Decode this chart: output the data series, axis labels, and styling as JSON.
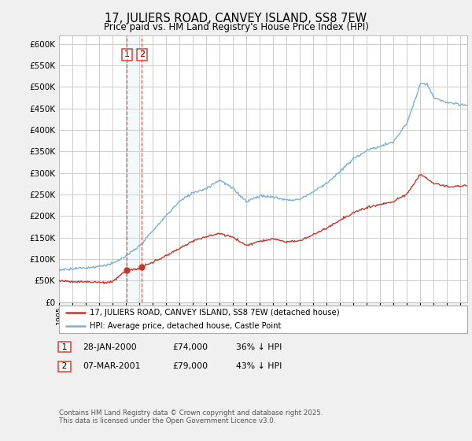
{
  "title": "17, JULIERS ROAD, CANVEY ISLAND, SS8 7EW",
  "subtitle": "Price paid vs. HM Land Registry's House Price Index (HPI)",
  "ytick_vals": [
    0,
    50000,
    100000,
    150000,
    200000,
    250000,
    300000,
    350000,
    400000,
    450000,
    500000,
    550000,
    600000
  ],
  "ylim": [
    0,
    620000
  ],
  "hpi_color": "#7bafd4",
  "price_color": "#c0392b",
  "vline_color": "#e74c3c",
  "shade_color": "#d0e4f0",
  "transaction1_date": 2000.07,
  "transaction1_price": 74000,
  "transaction2_date": 2001.19,
  "transaction2_price": 79000,
  "legend_line1": "17, JULIERS ROAD, CANVEY ISLAND, SS8 7EW (detached house)",
  "legend_line2": "HPI: Average price, detached house, Castle Point",
  "footnote": "Contains HM Land Registry data © Crown copyright and database right 2025.\nThis data is licensed under the Open Government Licence v3.0.",
  "background_color": "#f0f0f0",
  "plot_bg_color": "#ffffff",
  "grid_color": "#cccccc",
  "hpi_anchors_x": [
    1995,
    1996,
    1997,
    1998,
    1999,
    2000,
    2001,
    2002,
    2003,
    2004,
    2005,
    2006,
    2007,
    2008,
    2009,
    2010,
    2011,
    2012,
    2013,
    2014,
    2015,
    2016,
    2017,
    2018,
    2019,
    2020,
    2021,
    2022,
    2022.5,
    2023,
    2024,
    2025
  ],
  "hpi_anchors_y": [
    75000,
    78000,
    80000,
    84000,
    90000,
    107000,
    130000,
    165000,
    200000,
    235000,
    255000,
    265000,
    285000,
    265000,
    235000,
    248000,
    245000,
    238000,
    240000,
    258000,
    278000,
    305000,
    335000,
    355000,
    365000,
    375000,
    420000,
    510000,
    510000,
    478000,
    468000,
    462000
  ],
  "price_anchors_x": [
    1995,
    1996,
    1997,
    1998,
    1999,
    2000,
    2001,
    2002,
    2003,
    2004,
    2005,
    2006,
    2007,
    2008,
    2009,
    2010,
    2011,
    2012,
    2013,
    2014,
    2015,
    2016,
    2017,
    2018,
    2019,
    2020,
    2021,
    2022,
    2023,
    2024,
    2025
  ],
  "price_anchors_y": [
    50000,
    48000,
    47000,
    46000,
    47000,
    74000,
    79000,
    93000,
    108000,
    125000,
    143000,
    152000,
    160000,
    152000,
    132000,
    142000,
    147000,
    140000,
    143000,
    157000,
    173000,
    190000,
    208000,
    220000,
    228000,
    235000,
    252000,
    298000,
    276000,
    268000,
    270000
  ],
  "xlim_left": 1995,
  "xlim_right": 2025.5
}
